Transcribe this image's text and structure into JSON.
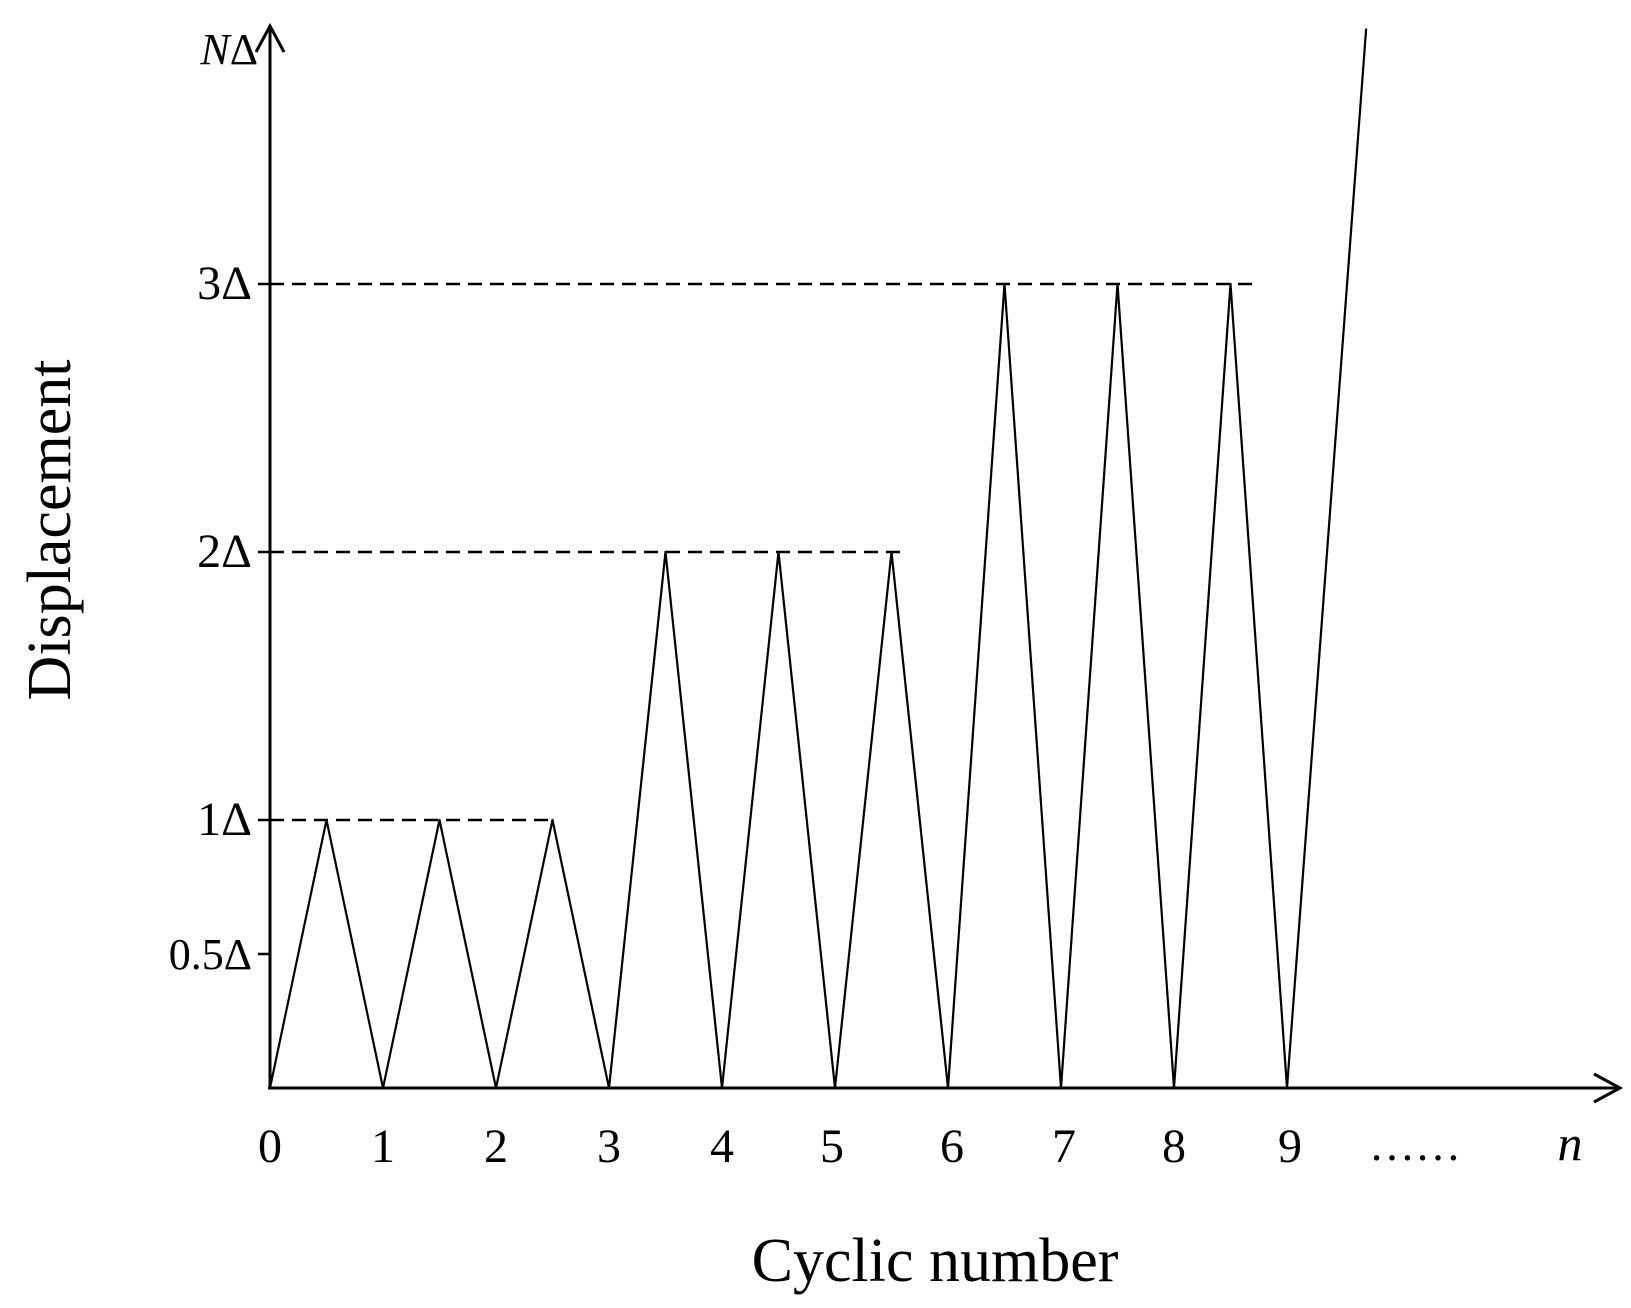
{
  "chart_data": {
    "type": "line",
    "xlabel": "Cyclic number",
    "ylabel": "Displacement",
    "x_ticks": [
      "0",
      "1",
      "2",
      "3",
      "4",
      "5",
      "6",
      "7",
      "8",
      "9",
      "……",
      "n"
    ],
    "y_ticks": [
      {
        "value": 0.5,
        "label": "0.5Δ"
      },
      {
        "value": 1,
        "label": "1Δ"
      },
      {
        "value": 2,
        "label": "2Δ"
      },
      {
        "value": 3,
        "label": "3Δ"
      }
    ],
    "y_top_label": {
      "prefix": "N",
      "suffix": "Δ"
    },
    "reference_levels": [
      {
        "value": 1,
        "x_end": 2.5
      },
      {
        "value": 2,
        "x_end": 5.6
      },
      {
        "value": 3,
        "x_end": 8.75
      }
    ],
    "series": [
      {
        "x": [
          0,
          0.5,
          1,
          1.5,
          2,
          2.5,
          3,
          3.5,
          4,
          4.5,
          5,
          5.5,
          6,
          6.5,
          7,
          7.5,
          8,
          8.5,
          9,
          9.7
        ],
        "y": [
          0,
          1,
          0,
          1,
          0,
          1,
          0,
          2,
          0,
          2,
          0,
          2,
          0,
          3,
          0,
          3,
          0,
          3,
          0,
          3.95
        ]
      }
    ],
    "xlim": [
      0,
      12
    ],
    "ylim": [
      0,
      3.95
    ],
    "grid": false,
    "legend": "none"
  }
}
